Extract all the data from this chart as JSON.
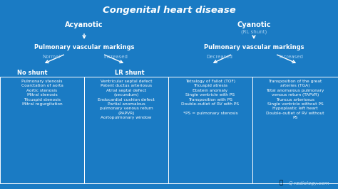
{
  "title": "Congenital heart disease",
  "bg_color": "#1a7bc4",
  "title_color": "white",
  "title_fontsize": 9.5,
  "text_color": "white",
  "label_color": "#a8d0f0",
  "acyanotic_label": "Acyanotic",
  "cyanotic_label": "Cyanotic",
  "cyanotic_sub": "(RL shunt)",
  "pvm_label": "Pulmonary vascular markings",
  "normal_label": "Normal",
  "increased_label1": "Increased",
  "decreased_label": "Decreased",
  "increased_label2": "Increased",
  "no_shunt_label": "No shunt",
  "lr_shunt_label": "LR shunt",
  "box1_text": "Pulmonary stenosis\nCoarctation of aorta\nAortic stenosis\nMitral stenosis\nTricuspid stenosis\nMitral regurgitation",
  "box2_text": "Ventricular septal defect\nPatent ductus arteriosus\nAtrial septal defect\n(secundum)\nEndocardial cushion defect\nPartial anomalous\npulmonary venous return\n(PAPVR)\nAortopulmonary window",
  "box3_text": "Tetralogy of Fallot (TOF)\nTricuspid atresia\nEbstein anomaly\nSingle ventricle with PS\nTransposition with PS\nDouble-outlet of RV with PS\n\n*PS = pulmonary stenosis",
  "box4_text": "Transposition of the great\narteries (TGA)\nTotal anomalous pulmonary\nvenous return (TAPVR)\nTruncus arteriosus\nSingle ventricle without PS\nHypoplastic left heart\nDouble-outlet of RV without\nPS",
  "watermark": "Q-radiology.com"
}
